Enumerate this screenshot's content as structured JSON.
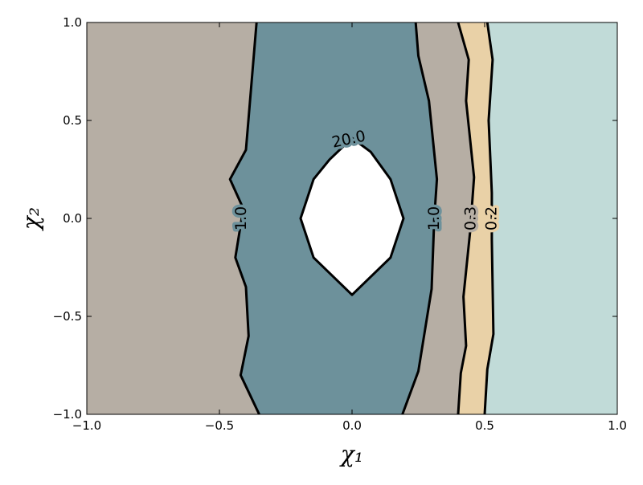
{
  "chart_data": {
    "type": "contour",
    "xlabel": "χ₁",
    "ylabel": "χ₂",
    "xlim": [
      -1,
      1
    ],
    "ylim": [
      -1,
      1
    ],
    "xticks": [
      {
        "value": -1,
        "label": "−1.0"
      },
      {
        "value": -0.5,
        "label": "−0.5"
      },
      {
        "value": 0,
        "label": "0.0"
      },
      0.5,
      {
        "value": 1,
        "label": "1.0"
      }
    ],
    "yticks": [
      {
        "value": -1,
        "label": "−1.0"
      },
      {
        "value": -0.5,
        "label": "−0.5"
      },
      {
        "value": 0,
        "label": "0.0"
      },
      0.5,
      {
        "value": 1,
        "label": "1.0"
      }
    ],
    "background": "#b6aea4",
    "contours": [
      {
        "level": 1,
        "label": "1.0",
        "closed": false,
        "fill": "#6d919b",
        "x": [
          -0.36,
          -0.4,
          -0.46,
          -0.41,
          -0.44,
          -0.4,
          -0.39,
          -0.42,
          -0.35
        ],
        "y": [
          1,
          0.35,
          0.2,
          0.05,
          -0.2,
          -0.35,
          -0.6,
          -0.8,
          -1
        ]
      },
      {
        "level": 1,
        "label": "1.0",
        "closed": false,
        "fill": "#b6aea4",
        "x": [
          0.24,
          0.25,
          0.29,
          0.32,
          0.31,
          0.3,
          0.25,
          0.19
        ],
        "y": [
          1,
          0.83,
          0.6,
          0.2,
          0,
          -0.36,
          -0.78,
          -1
        ]
      },
      {
        "level": 0.3,
        "label": "0.3",
        "closed": false,
        "fill": "#e9d1a7",
        "x": [
          0.4,
          0.44,
          0.43,
          0.46,
          0.445,
          0.42,
          0.43,
          0.41,
          0.4
        ],
        "y": [
          1,
          0.81,
          0.6,
          0.21,
          -0.07,
          -0.4,
          -0.65,
          -0.79,
          -1
        ]
      },
      {
        "level": 0.2,
        "label": "0.2",
        "closed": false,
        "fill": "#c1dbd8",
        "x": [
          0.51,
          0.53,
          0.515,
          0.527,
          0.527,
          0.533,
          0.51,
          0.5
        ],
        "y": [
          1,
          0.81,
          0.5,
          0.13,
          -0.11,
          -0.59,
          -0.77,
          -1
        ]
      },
      {
        "level": 20,
        "label": "20.0",
        "closed": true,
        "fill": "#ffffff",
        "x": [
          0,
          -0.085,
          -0.145,
          -0.194,
          -0.145,
          0,
          0.145,
          0.194,
          0.145,
          0.07
        ],
        "y": [
          0.41,
          0.3,
          0.2,
          0,
          -0.2,
          -0.39,
          -0.2,
          0,
          0.2,
          0.34
        ]
      }
    ]
  }
}
